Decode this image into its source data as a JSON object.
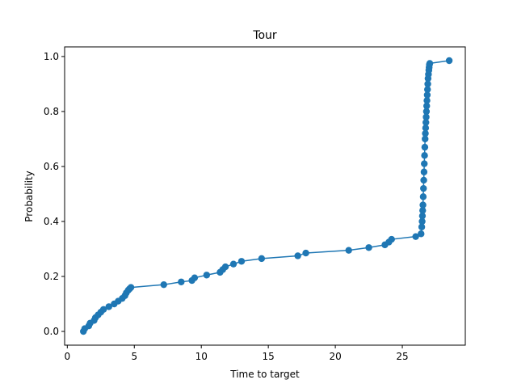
{
  "chart_data": {
    "type": "line",
    "title": "Tour",
    "xlabel": "Time to target",
    "ylabel": "Probability",
    "xlim": [
      -0.2,
      29.7
    ],
    "ylim": [
      -0.05,
      1.035
    ],
    "xticks": [
      0,
      5,
      10,
      15,
      20,
      25
    ],
    "xtick_labels": [
      "0",
      "5",
      "10",
      "15",
      "20",
      "25"
    ],
    "yticks": [
      0.0,
      0.2,
      0.4,
      0.6,
      0.8,
      1.0
    ],
    "ytick_labels": [
      "0.0",
      "0.2",
      "0.4",
      "0.6",
      "0.8",
      "1.0"
    ],
    "grid": false,
    "series_color": "#1f77b4",
    "marker": "circle",
    "series": [
      {
        "x": [
          1.2,
          1.3,
          1.6,
          1.7,
          2.0,
          2.1,
          2.3,
          2.5,
          2.7,
          3.1,
          3.5,
          3.8,
          4.1,
          4.3,
          4.4,
          4.55,
          4.65,
          4.75,
          7.2,
          8.5,
          9.3,
          9.5,
          10.4,
          11.4,
          11.6,
          11.8,
          12.4,
          13.0,
          14.5,
          17.2,
          17.8,
          21.0,
          22.5,
          23.7,
          24.0,
          24.2,
          26.0,
          26.4,
          26.45,
          26.48,
          26.5,
          26.52,
          26.54,
          26.56,
          26.58,
          26.6,
          26.62,
          26.64,
          26.66,
          26.68,
          26.7,
          26.72,
          26.74,
          26.76,
          26.78,
          26.8,
          26.82,
          26.84,
          26.86,
          26.88,
          26.9,
          26.92,
          26.95,
          26.98,
          27.0,
          27.02,
          27.05,
          28.5
        ],
        "y": [
          0.0,
          0.01,
          0.02,
          0.03,
          0.04,
          0.05,
          0.06,
          0.07,
          0.08,
          0.09,
          0.1,
          0.11,
          0.12,
          0.13,
          0.14,
          0.15,
          0.155,
          0.16,
          0.17,
          0.18,
          0.185,
          0.195,
          0.205,
          0.215,
          0.225,
          0.235,
          0.245,
          0.255,
          0.265,
          0.275,
          0.285,
          0.295,
          0.305,
          0.315,
          0.325,
          0.335,
          0.345,
          0.355,
          0.38,
          0.4,
          0.42,
          0.44,
          0.46,
          0.49,
          0.52,
          0.55,
          0.58,
          0.61,
          0.64,
          0.67,
          0.7,
          0.72,
          0.74,
          0.76,
          0.78,
          0.8,
          0.82,
          0.84,
          0.86,
          0.88,
          0.9,
          0.92,
          0.935,
          0.95,
          0.96,
          0.97,
          0.975,
          0.985
        ]
      }
    ]
  }
}
